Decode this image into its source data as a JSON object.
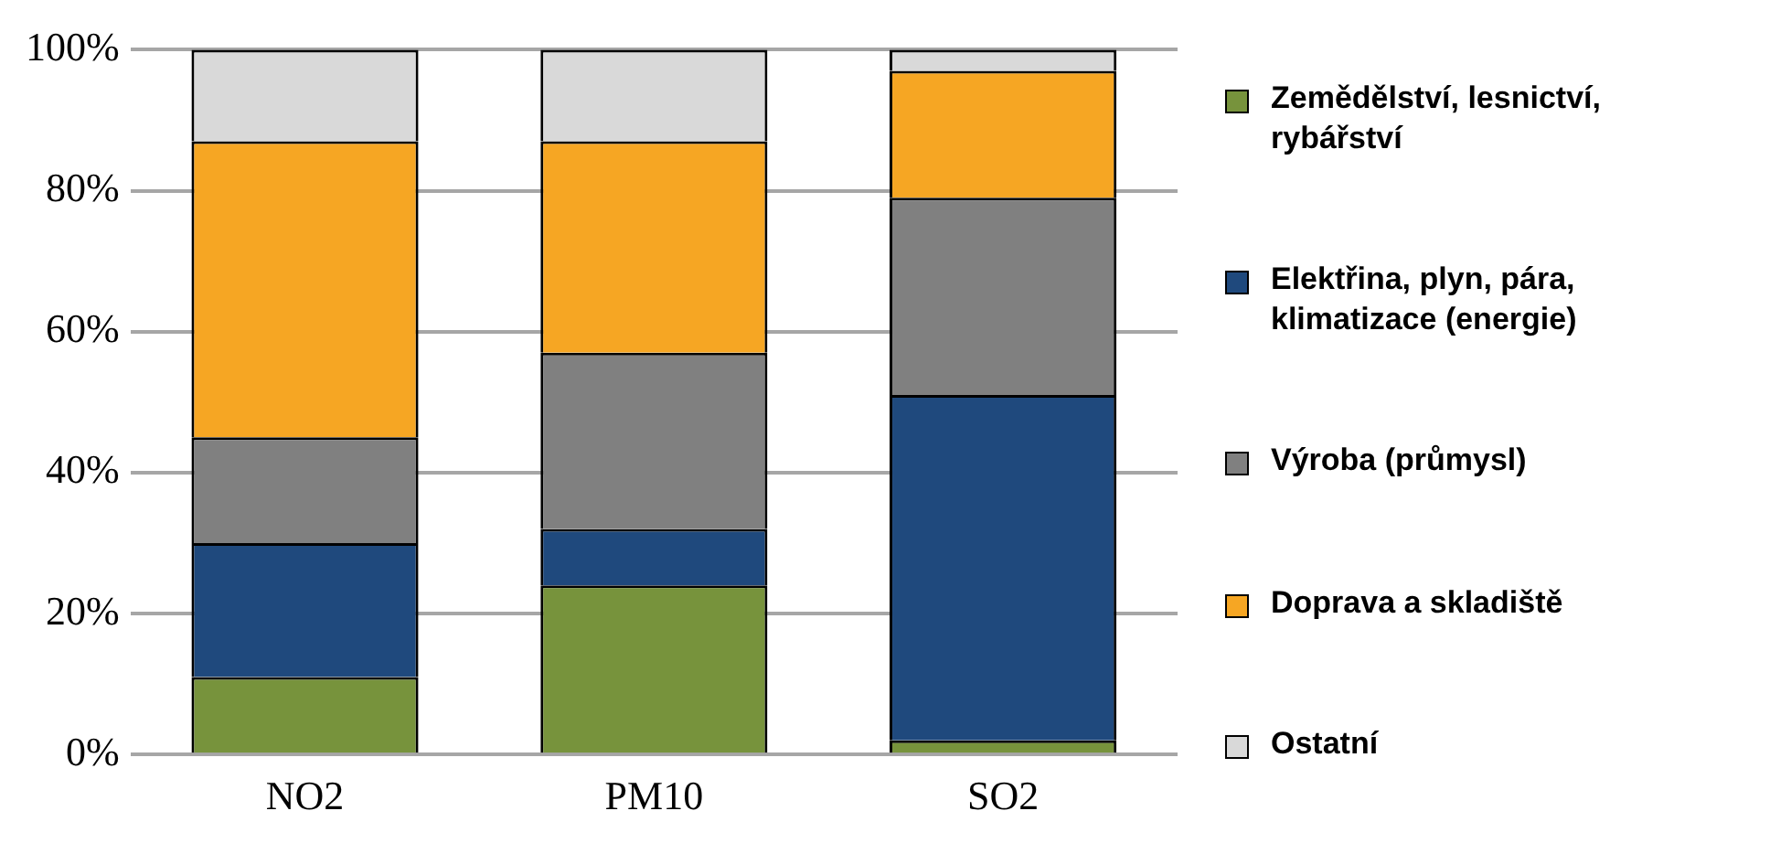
{
  "chart_data": {
    "type": "bar",
    "stacked": true,
    "categories": [
      "NO2",
      "PM10",
      "SO2"
    ],
    "series": [
      {
        "name": "Zemědělství, lesnictví, rybářství",
        "color": "#77933c",
        "values": [
          11,
          24,
          2
        ]
      },
      {
        "name": "Elektřina, plyn, pára, klimatizace (energie)",
        "color": "#1f497d",
        "values": [
          19,
          8,
          49
        ]
      },
      {
        "name": "Výroba (průmysl)",
        "color": "#808080",
        "values": [
          15,
          25,
          28
        ]
      },
      {
        "name": "Doprava a skladiště",
        "color": "#f6a623",
        "values": [
          42,
          30,
          18
        ]
      },
      {
        "name": "Ostatní",
        "color": "#d9d9d9",
        "values": [
          13,
          13,
          3
        ]
      }
    ],
    "ylim": [
      0,
      100
    ],
    "yticks": [
      {
        "value": 0,
        "label": "0%"
      },
      {
        "value": 20,
        "label": "20%"
      },
      {
        "value": 40,
        "label": "40%"
      },
      {
        "value": 60,
        "label": "60%"
      },
      {
        "value": 80,
        "label": "80%"
      },
      {
        "value": 100,
        "label": "100%"
      }
    ],
    "grid": "y",
    "legend": "right"
  }
}
